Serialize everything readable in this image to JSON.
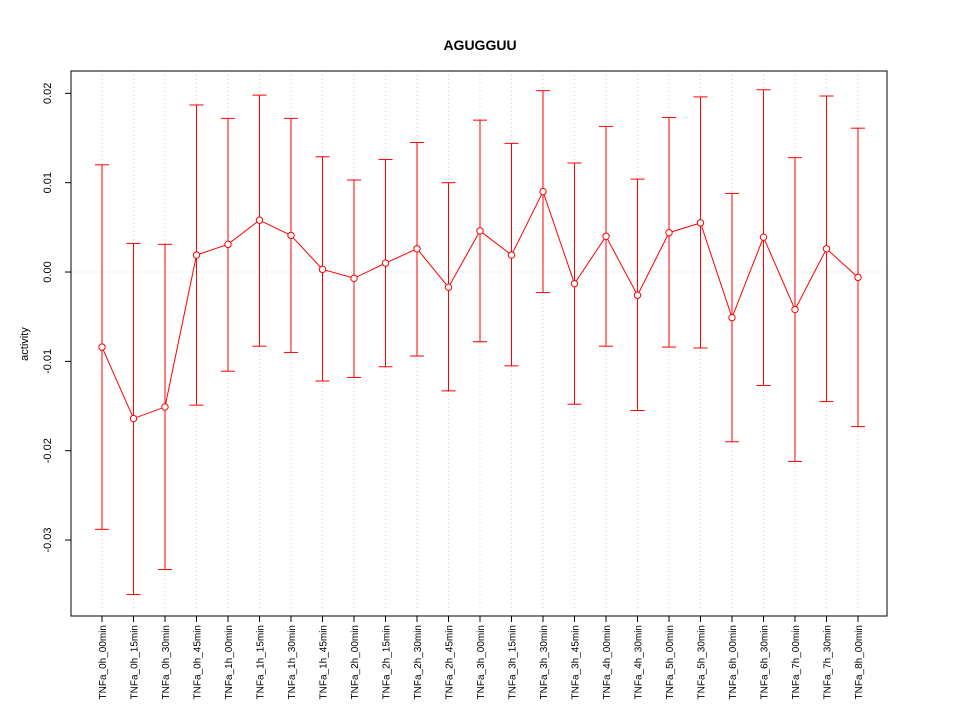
{
  "chart_data": {
    "type": "line",
    "title": "AGUGGUU",
    "xlabel": "",
    "ylabel": "activity",
    "ylim": [
      -0.0385,
      0.0225
    ],
    "yticks": [
      -0.03,
      -0.02,
      -0.01,
      0.0,
      0.01,
      0.02
    ],
    "ytick_labels": [
      "-0.03",
      "-0.02",
      "-0.01",
      "0.00",
      "0.01",
      "0.02"
    ],
    "grid": true,
    "reference_line": 0.0,
    "color": "#ff0000",
    "grid_color": "#d3d3d3",
    "categories": [
      "TNFa_0h_00min",
      "TNFa_0h_15min",
      "TNFa_0h_30min",
      "TNFa_0h_45min",
      "TNFa_1h_00min",
      "TNFa_1h_15min",
      "TNFa_1h_30min",
      "TNFa_1h_45min",
      "TNFa_2h_00min",
      "TNFa_2h_15min",
      "TNFa_2h_30min",
      "TNFa_2h_45min",
      "TNFa_3h_00min",
      "TNFa_3h_15min",
      "TNFa_3h_30min",
      "TNFa_3h_45min",
      "TNFa_4h_00min",
      "TNFa_4h_30min",
      "TNFa_5h_00min",
      "TNFa_5h_30min",
      "TNFa_6h_00min",
      "TNFa_6h_30min",
      "TNFa_7h_00min",
      "TNFa_7h_30min",
      "TNFa_8h_00min"
    ],
    "values": [
      -0.0084,
      -0.0164,
      -0.0151,
      0.0019,
      0.0031,
      0.0058,
      0.0041,
      0.0003,
      -0.0007,
      0.001,
      0.0026,
      -0.0017,
      0.0046,
      0.0019,
      0.009,
      -0.0013,
      0.004,
      -0.0026,
      0.0044,
      0.0055,
      -0.0051,
      0.0039,
      -0.0042,
      0.0026,
      -0.0006
    ],
    "upper": [
      0.012,
      0.0032,
      0.0031,
      0.0187,
      0.0172,
      0.0198,
      0.0172,
      0.0129,
      0.0103,
      0.0126,
      0.0145,
      0.01,
      0.017,
      0.0144,
      0.0203,
      0.0122,
      0.0163,
      0.0104,
      0.0173,
      0.0196,
      0.0088,
      0.0204,
      0.0128,
      0.0197,
      0.0161
    ],
    "lower": [
      -0.0288,
      -0.0361,
      -0.0333,
      -0.0149,
      -0.0111,
      -0.0083,
      -0.009,
      -0.0122,
      -0.0118,
      -0.0106,
      -0.0094,
      -0.0133,
      -0.0078,
      -0.0105,
      -0.0023,
      -0.0148,
      -0.0083,
      -0.0155,
      -0.0084,
      -0.0085,
      -0.019,
      -0.0127,
      -0.0212,
      -0.0145,
      -0.0173
    ]
  }
}
